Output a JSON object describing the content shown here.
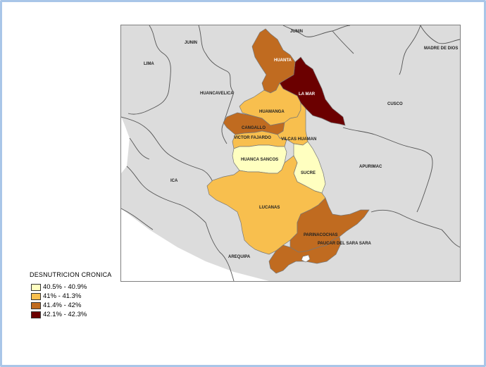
{
  "legend": {
    "title": "DESNUTRICION  CRONICA",
    "items": [
      {
        "label": "40.5% - 40.9%",
        "color": "#ffffc0"
      },
      {
        "label": "41% - 41.3%",
        "color": "#f8bf4e"
      },
      {
        "label": "41.4% - 42%",
        "color": "#c06b20"
      },
      {
        "label": "42.1% - 42.3%",
        "color": "#6b0000"
      }
    ]
  },
  "map": {
    "neighbors": {
      "junin_top": "JUNIN",
      "junin_left": "JUNIN",
      "lima": "LIMA",
      "huancavelica": "HUANCAVELICA",
      "ica": "ICA",
      "arequipa": "AREQUIPA",
      "cusco": "CUSCO",
      "apurimac": "APURIMAC",
      "madre_de_dios": "MADRE DE DIOS"
    },
    "provinces": {
      "huanta": "HUANTA",
      "la_mar": "LA MAR",
      "huamanga": "HUAMANGA",
      "cangallo": "CANGALLO",
      "victor_fajardo": "VICTOR FAJARDO",
      "vilcas_huaman": "VILCAS HUAMAN",
      "huanca_sancos": "HUANCA SANCOS",
      "sucre": "SUCRE",
      "lucanas": "LUCANAS",
      "parinacochas": "PARINACOCHAS",
      "paucar_del_sara_sara": "PAUCAR DEL SARA SARA"
    },
    "colors": {
      "background_land": "#dcdcdc",
      "class1": "#ffffc0",
      "class2": "#f8bf4e",
      "class3": "#c06b20",
      "class4": "#6b0000",
      "borders": "#555555"
    }
  }
}
